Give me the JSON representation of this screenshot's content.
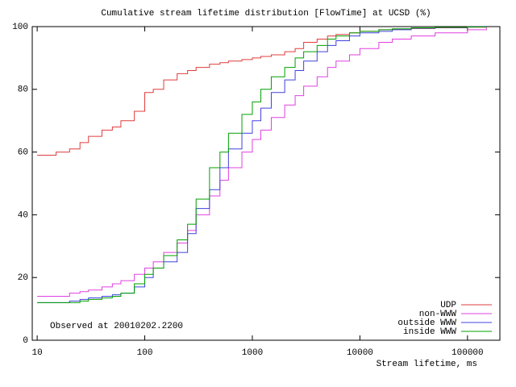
{
  "chart_data": {
    "type": "line",
    "step": true,
    "log_x": true,
    "grid": false,
    "legend": "lower right",
    "title": "Cumulative stream lifetime distribution [FlowTime] at UCSD (%)",
    "x_label": "Stream lifetime, ms",
    "annotation": "Observed at 20010202.2200",
    "xlim": [
      9,
      200000
    ],
    "ylim": [
      0,
      100
    ],
    "xticks": [
      10,
      100,
      1000,
      10000,
      100000
    ],
    "yticks": [
      0,
      20,
      40,
      60,
      80,
      100
    ],
    "x": [
      10,
      12,
      15,
      20,
      25,
      30,
      40,
      50,
      60,
      80,
      100,
      120,
      150,
      200,
      250,
      300,
      400,
      500,
      600,
      800,
      1000,
      1200,
      1500,
      2000,
      2500,
      3000,
      4000,
      5000,
      6000,
      8000,
      10000,
      15000,
      20000,
      30000,
      50000,
      100000,
      150000
    ],
    "series": [
      {
        "name": "UDP",
        "color": "#e03c3c",
        "values": [
          59,
          59,
          60,
          61,
          63,
          65,
          67,
          68,
          70,
          73,
          79,
          80,
          83,
          85,
          86,
          87,
          88,
          88.5,
          89,
          89.5,
          90,
          90.5,
          91,
          92,
          93,
          95,
          96,
          97,
          97.5,
          98,
          98.5,
          99,
          99.2,
          99.4,
          99.6,
          99.8,
          100
        ]
      },
      {
        "name": "non-WWW",
        "color": "#e040e0",
        "values": [
          14,
          14,
          14,
          15,
          15.5,
          16,
          17,
          18,
          19,
          21,
          23,
          25,
          28,
          31,
          35,
          40,
          46,
          51,
          55,
          60,
          64,
          67,
          71,
          75,
          78,
          81,
          84,
          87,
          89,
          91,
          93,
          95,
          96,
          97,
          98,
          99,
          100
        ]
      },
      {
        "name": "outside WWW",
        "color": "#4040e0",
        "values": [
          12,
          12,
          12,
          12.5,
          13,
          13.5,
          14,
          14.5,
          15,
          17,
          20,
          23,
          25,
          28,
          34,
          42,
          48,
          55,
          61,
          66,
          70,
          74,
          79,
          83,
          86,
          89,
          92,
          94,
          95.5,
          97,
          98,
          98.5,
          99,
          99.5,
          99.7,
          99.9,
          100
        ]
      },
      {
        "name": "inside WWW",
        "color": "#00a000",
        "values": [
          12,
          12,
          12,
          12,
          12.5,
          13,
          13.5,
          14,
          15,
          18,
          21,
          23,
          27,
          32,
          37,
          45,
          55,
          60,
          66,
          72,
          76,
          80,
          84,
          87,
          90,
          92,
          94,
          96,
          97,
          98,
          98.5,
          99,
          99.3,
          99.6,
          99.8,
          99.9,
          100
        ]
      }
    ]
  }
}
